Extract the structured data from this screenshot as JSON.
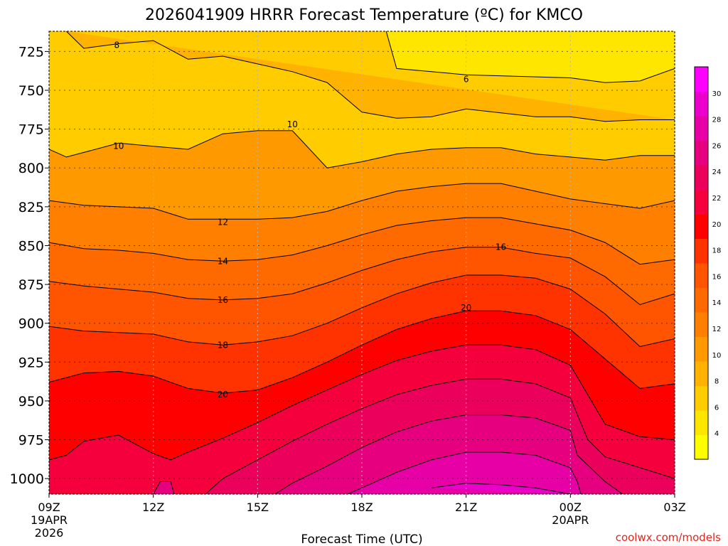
{
  "chart_data": {
    "type": "area",
    "title": "2026041909 HRRR Forecast Temperature (ºC) for KMCO",
    "xlabel": "Forecast Time (UTC)",
    "ylabel": "",
    "credit": "coolwx.com/models",
    "x_ticks": [
      {
        "hour": 0,
        "label": "09Z",
        "sub1": "19APR",
        "sub2": "2026"
      },
      {
        "hour": 3,
        "label": "12Z",
        "sub1": "",
        "sub2": ""
      },
      {
        "hour": 6,
        "label": "15Z",
        "sub1": "",
        "sub2": ""
      },
      {
        "hour": 9,
        "label": "18Z",
        "sub1": "",
        "sub2": ""
      },
      {
        "hour": 12,
        "label": "21Z",
        "sub1": "",
        "sub2": ""
      },
      {
        "hour": 15,
        "label": "00Z",
        "sub1": "20APR",
        "sub2": ""
      },
      {
        "hour": 18,
        "label": "03Z",
        "sub1": "",
        "sub2": ""
      }
    ],
    "xlim_hours": [
      0,
      18
    ],
    "y_ticks": [
      725,
      750,
      775,
      800,
      825,
      850,
      875,
      900,
      925,
      950,
      975,
      1000
    ],
    "ylim_hPa": [
      712,
      1010
    ],
    "surface_pressure_hPa": 1010,
    "grid": true,
    "colorbar": {
      "ticks": [
        4,
        6,
        8,
        10,
        12,
        14,
        16,
        18,
        20,
        22,
        24,
        26,
        28,
        30
      ],
      "colors": [
        "#ffff00",
        "#ffe600",
        "#ffcc00",
        "#ffb300",
        "#ff9900",
        "#ff8000",
        "#ff6a00",
        "#ff5500",
        "#ff3300",
        "#ff0000",
        "#f5003d",
        "#eb005c",
        "#e60080",
        "#e600a6",
        "#eb00cc",
        "#ff00ff"
      ],
      "min": 2,
      "max": 32
    },
    "contour_labels": [
      {
        "value": "8",
        "hour": 1.95,
        "hPa": 721
      },
      {
        "value": "6",
        "hour": 12.0,
        "hPa": 743
      },
      {
        "value": "10",
        "hour": 2.0,
        "hPa": 786
      },
      {
        "value": "10",
        "hour": 7.0,
        "hPa": 772
      },
      {
        "value": "12",
        "hour": 5.0,
        "hPa": 835
      },
      {
        "value": "14",
        "hour": 5.0,
        "hPa": 860
      },
      {
        "value": "16",
        "hour": 5.0,
        "hPa": 885
      },
      {
        "value": "16",
        "hour": 13.0,
        "hPa": 851
      },
      {
        "value": "18",
        "hour": 5.0,
        "hPa": 914
      },
      {
        "value": "20",
        "hour": 5.0,
        "hPa": 946
      },
      {
        "value": "20",
        "hour": 12.0,
        "hPa": 890
      }
    ],
    "series": [
      {
        "value": 6,
        "x": [
          9.7,
          10.0,
          12.0,
          15.0,
          16.0,
          17.0,
          18.0
        ],
        "y": [
          712,
          736,
          740,
          742,
          745,
          744,
          736
        ]
      },
      {
        "value": 8,
        "x": [
          0.5,
          1.0,
          2.0,
          3.0,
          4.0,
          5.0,
          6.0,
          7.0,
          8.0,
          9.0,
          10.0,
          11.0,
          12.0,
          14.0,
          15.0,
          16.0,
          17.0,
          18.0
        ],
        "y": [
          712,
          723,
          720,
          718,
          730,
          728,
          733,
          738,
          745,
          764,
          768,
          767,
          762,
          767,
          767,
          770,
          769,
          769
        ]
      },
      {
        "value": 10,
        "x": [
          0.0,
          0.5,
          1.0,
          2.0,
          3.0,
          4.0,
          5.0,
          6.0,
          7.0,
          8.0,
          9.0,
          10.0,
          11.0,
          12.0,
          13.0,
          14.0,
          15.0,
          16.0,
          17.0,
          18.0
        ],
        "y": [
          788,
          793,
          790,
          784,
          786,
          788,
          778,
          776,
          776,
          800,
          796,
          791,
          788,
          787,
          787,
          791,
          793,
          795,
          792,
          792
        ]
      },
      {
        "value": 12,
        "x": [
          0.0,
          1.0,
          2.0,
          3.0,
          4.0,
          5.0,
          6.0,
          7.0,
          8.0,
          9.0,
          10.0,
          11.0,
          12.0,
          13.0,
          14.0,
          15.0,
          16.0,
          17.0,
          18.0
        ],
        "y": [
          821,
          824,
          825,
          826,
          833,
          833,
          833,
          832,
          828,
          821,
          815,
          812,
          810,
          810,
          815,
          820,
          823,
          826,
          821
        ]
      },
      {
        "value": 14,
        "x": [
          0.0,
          1.0,
          2.0,
          3.0,
          4.0,
          5.0,
          6.0,
          7.0,
          8.0,
          9.0,
          10.0,
          11.0,
          12.0,
          13.0,
          14.0,
          15.0,
          16.0,
          17.0,
          18.0
        ],
        "y": [
          848,
          852,
          853,
          855,
          859,
          860,
          859,
          856,
          850,
          843,
          837,
          834,
          832,
          832,
          836,
          840,
          848,
          862,
          859
        ]
      },
      {
        "value": 16,
        "x": [
          0.0,
          1.0,
          2.0,
          3.0,
          4.0,
          5.0,
          6.0,
          7.0,
          8.0,
          9.0,
          10.0,
          11.0,
          12.0,
          13.0,
          14.0,
          15.0,
          16.0,
          17.0,
          18.0
        ],
        "y": [
          873,
          876,
          878,
          880,
          884,
          885,
          884,
          881,
          874,
          866,
          859,
          854,
          851,
          851,
          855,
          858,
          870,
          888,
          881
        ]
      },
      {
        "value": 18,
        "x": [
          0.0,
          1.0,
          2.0,
          3.0,
          4.0,
          5.0,
          6.0,
          7.0,
          8.0,
          9.0,
          10.0,
          11.0,
          12.0,
          13.0,
          14.0,
          15.0,
          16.0,
          17.0,
          18.0
        ],
        "y": [
          902,
          905,
          906,
          907,
          912,
          914,
          912,
          908,
          900,
          890,
          881,
          874,
          869,
          869,
          871,
          878,
          894,
          915,
          910
        ]
      },
      {
        "value": 20,
        "x": [
          0.0,
          1.0,
          2.0,
          3.0,
          4.0,
          5.0,
          6.0,
          7.0,
          8.0,
          9.0,
          10.0,
          11.0,
          12.0,
          13.0,
          14.0,
          15.0,
          16.0,
          17.0,
          18.0
        ],
        "y": [
          938,
          932,
          931,
          934,
          942,
          945,
          943,
          935,
          925,
          914,
          904,
          897,
          892,
          892,
          895,
          904,
          923,
          942,
          939
        ]
      },
      {
        "value": 22,
        "x": [
          0.0,
          0.5,
          1.0,
          2.0,
          3.0,
          3.5,
          4.0,
          5.0,
          6.0,
          7.0,
          8.0,
          9.0,
          10.0,
          11.0,
          12.0,
          13.0,
          14.0,
          15.0,
          16.0,
          17.0,
          18.0
        ],
        "y": [
          988,
          985,
          976,
          972,
          984,
          988,
          983,
          974,
          964,
          953,
          943,
          933,
          924,
          918,
          914,
          914,
          917,
          927,
          965,
          973,
          975
        ]
      },
      {
        "value": 24,
        "x": [
          4.5,
          5.0,
          6.0,
          7.0,
          8.0,
          9.0,
          10.0,
          11.0,
          12.0,
          13.0,
          14.0,
          15.0,
          15.5,
          16.0,
          17.0,
          18.0
        ],
        "y": [
          1010,
          1000,
          988,
          976,
          965,
          955,
          946,
          940,
          936,
          936,
          939,
          948,
          975,
          986,
          993,
          1000
        ]
      },
      {
        "value": 26,
        "x": [
          3.0,
          3.2,
          3.5,
          3.6
        ],
        "y": [
          1010,
          1002,
          1002,
          1010
        ]
      },
      {
        "value": 26,
        "x": [
          6.5,
          7.0,
          8.0,
          9.0,
          10.0,
          11.0,
          12.0,
          13.0,
          14.0,
          15.0,
          15.2,
          16.0,
          16.5
        ],
        "y": [
          1010,
          1003,
          992,
          980,
          970,
          963,
          959,
          959,
          961,
          969,
          985,
          1002,
          1010
        ]
      },
      {
        "value": 28,
        "x": [
          8.6,
          9.0,
          10.0,
          11.0,
          12.0,
          13.0,
          14.0,
          15.0,
          15.2,
          15.3
        ],
        "y": [
          1010,
          1006,
          996,
          988,
          983,
          983,
          985,
          993,
          1002,
          1010
        ]
      },
      {
        "value": 30,
        "x": [
          11.0,
          12.0,
          13.0,
          14.0,
          15.0
        ],
        "y": [
          1006,
          1003,
          1004,
          1006,
          1010
        ]
      }
    ]
  }
}
